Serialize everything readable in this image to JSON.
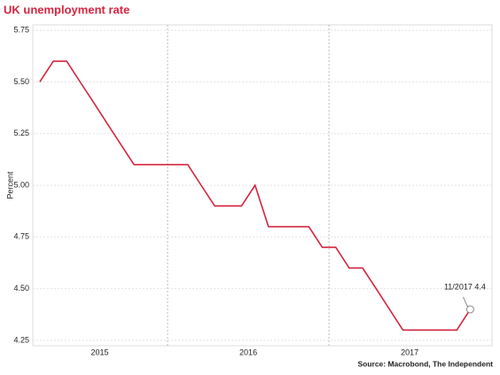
{
  "chart_data": {
    "type": "line",
    "title": "UK unemployment rate",
    "ylabel": "Percent",
    "source": "Source: Macrobond, The Independent",
    "annotation": "11/2017 4.4",
    "series": [
      {
        "name": "UK unemployment rate",
        "color": "#d6243f",
        "x": [
          2015.208,
          2015.292,
          2015.375,
          2015.458,
          2015.542,
          2015.625,
          2015.708,
          2015.792,
          2015.875,
          2015.958,
          2016.042,
          2016.125,
          2016.208,
          2016.292,
          2016.375,
          2016.458,
          2016.542,
          2016.625,
          2016.708,
          2016.792,
          2016.875,
          2016.958,
          2017.042,
          2017.125,
          2017.208,
          2017.292,
          2017.375,
          2017.458,
          2017.542,
          2017.625,
          2017.708,
          2017.792,
          2017.875
        ],
        "values": [
          5.5,
          5.6,
          5.6,
          5.5,
          5.4,
          5.3,
          5.2,
          5.1,
          5.1,
          5.1,
          5.1,
          5.1,
          5.0,
          4.9,
          4.9,
          4.9,
          5.0,
          4.8,
          4.8,
          4.8,
          4.8,
          4.7,
          4.7,
          4.6,
          4.6,
          4.5,
          4.4,
          4.3,
          4.3,
          4.3,
          4.3,
          4.3,
          4.4
        ]
      }
    ],
    "xlim": [
      2015.165,
      2018.01
    ],
    "xticks": [
      {
        "value": 2015.58,
        "label": "2015"
      },
      {
        "value": 2016.5,
        "label": "2016"
      },
      {
        "value": 2017.5,
        "label": "2017"
      }
    ],
    "xgrid": [
      2016,
      2017
    ],
    "ylim": [
      4.224,
      5.776
    ],
    "yticks": [
      {
        "value": 4.25,
        "label": "4.25"
      },
      {
        "value": 4.5,
        "label": "4.50"
      },
      {
        "value": 4.75,
        "label": "4.75"
      },
      {
        "value": 5.0,
        "label": "5.00"
      },
      {
        "value": 5.25,
        "label": "5.25"
      },
      {
        "value": 5.5,
        "label": "5.50"
      },
      {
        "value": 5.75,
        "label": "5.75"
      }
    ],
    "grid": true
  }
}
